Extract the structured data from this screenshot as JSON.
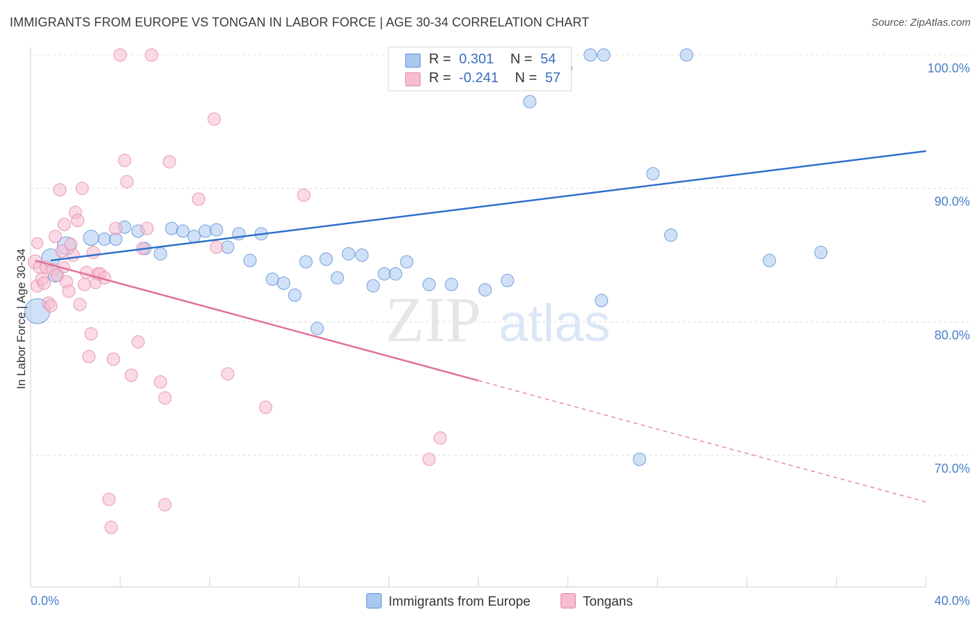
{
  "title": "IMMIGRANTS FROM EUROPE VS TONGAN IN LABOR FORCE | AGE 30-34 CORRELATION CHART",
  "source": "Source: ZipAtlas.com",
  "colors": {
    "blue_fill": "#a9c8f0",
    "blue_stroke": "#5b8fd6",
    "blue_line": "#2f6fc9",
    "pink_fill": "#f6bcd0",
    "pink_stroke": "#e68aa8",
    "pink_line": "#e0709a",
    "tick_label": "#4a7fc8"
  },
  "legend_top": {
    "series1": {
      "r_label": "R =",
      "r_value": "0.301",
      "n_label": "N =",
      "n_value": "54"
    },
    "series2": {
      "r_label": "R =",
      "r_value": "-0.241",
      "n_label": "N =",
      "n_value": "57"
    }
  },
  "chart_data": {
    "type": "scatter",
    "title": "IMMIGRANTS FROM EUROPE VS TONGAN IN LABOR FORCE | AGE 30-34 CORRELATION CHART",
    "ylabel": "In Labor Force | Age 30-34",
    "xlabel": "",
    "xlim": [
      0,
      40
    ],
    "ylim": [
      61.5,
      101.5
    ],
    "x_tick_labels": [
      "0.0%",
      "40.0%"
    ],
    "y_ticks": [
      {
        "value": 100,
        "label": "100.0%"
      },
      {
        "value": 90,
        "label": "90.0%"
      },
      {
        "value": 80,
        "label": "80.0%"
      },
      {
        "value": 70,
        "label": "70.0%"
      }
    ],
    "grid": true,
    "legend_position": "bottom",
    "watermark": "ZIPatlas",
    "series": [
      {
        "name": "Immigrants from Europe",
        "color": "#a9c8f0",
        "trend": {
          "x0": 0.9,
          "y0": 84.6,
          "x1": 40.0,
          "y1": 92.8
        },
        "points": [
          [
            0.3,
            80.8,
            18
          ],
          [
            0.9,
            84.8,
            13
          ],
          [
            1.1,
            83.5,
            10
          ],
          [
            1.6,
            85.7,
            13
          ],
          [
            2.7,
            86.3,
            11
          ],
          [
            3.3,
            86.2,
            9
          ],
          [
            3.8,
            86.2,
            9
          ],
          [
            4.2,
            87.1,
            9
          ],
          [
            4.8,
            86.8,
            9
          ],
          [
            5.1,
            85.5,
            9
          ],
          [
            5.8,
            85.1,
            9
          ],
          [
            6.3,
            87.0,
            9
          ],
          [
            6.8,
            86.8,
            9
          ],
          [
            7.3,
            86.4,
            9
          ],
          [
            7.8,
            86.8,
            9
          ],
          [
            8.3,
            86.9,
            9
          ],
          [
            8.8,
            85.6,
            9
          ],
          [
            9.3,
            86.6,
            9
          ],
          [
            9.8,
            84.6,
            9
          ],
          [
            10.3,
            86.6,
            9
          ],
          [
            10.8,
            83.2,
            9
          ],
          [
            11.3,
            82.9,
            9
          ],
          [
            11.8,
            82.0,
            9
          ],
          [
            12.3,
            84.5,
            9
          ],
          [
            12.8,
            79.5,
            9
          ],
          [
            13.2,
            84.7,
            9
          ],
          [
            13.7,
            83.3,
            9
          ],
          [
            14.2,
            85.1,
            9
          ],
          [
            14.8,
            85.0,
            9
          ],
          [
            15.3,
            82.7,
            9
          ],
          [
            15.8,
            83.6,
            9
          ],
          [
            16.3,
            83.6,
            9
          ],
          [
            16.8,
            84.5,
            9
          ],
          [
            17.8,
            82.8,
            9
          ],
          [
            18.8,
            82.8,
            9
          ],
          [
            20.3,
            82.4,
            9
          ],
          [
            21.3,
            83.1,
            9
          ],
          [
            22.3,
            96.5,
            9
          ],
          [
            25.5,
            81.6,
            9
          ],
          [
            27.2,
            69.7,
            9
          ],
          [
            27.8,
            91.1,
            9
          ],
          [
            28.6,
            86.5,
            9
          ],
          [
            33.0,
            84.6,
            9
          ],
          [
            35.3,
            85.2,
            9
          ],
          [
            18.5,
            100.0,
            9
          ],
          [
            19.5,
            100.0,
            9
          ],
          [
            20.0,
            100.0,
            9
          ],
          [
            22.0,
            100.0,
            9
          ],
          [
            22.5,
            100.0,
            9
          ],
          [
            25.0,
            100.0,
            9
          ],
          [
            25.6,
            100.0,
            9
          ],
          [
            29.3,
            100.0,
            9
          ],
          [
            17.5,
            99.0,
            7
          ],
          [
            24.0,
            99.0,
            6
          ]
        ]
      },
      {
        "name": "Tongans",
        "color": "#f6bcd0",
        "trend": {
          "x0": 0.2,
          "y0": 84.6,
          "x1": 20.0,
          "y1": 75.6,
          "dash_x1": 40.0,
          "dash_y1": 66.5
        },
        "points": [
          [
            0.2,
            84.5,
            10
          ],
          [
            0.3,
            82.7,
            9
          ],
          [
            0.4,
            84.1,
            9
          ],
          [
            0.5,
            83.2,
            9
          ],
          [
            0.6,
            82.9,
            9
          ],
          [
            0.7,
            84.1,
            9
          ],
          [
            0.8,
            81.4,
            9
          ],
          [
            0.9,
            81.2,
            9
          ],
          [
            1.0,
            83.9,
            9
          ],
          [
            1.1,
            86.4,
            9
          ],
          [
            1.2,
            83.5,
            9
          ],
          [
            1.3,
            89.9,
            9
          ],
          [
            1.4,
            85.3,
            9
          ],
          [
            1.5,
            87.3,
            9
          ],
          [
            1.6,
            83.0,
            9
          ],
          [
            1.7,
            82.3,
            9
          ],
          [
            1.8,
            85.8,
            9
          ],
          [
            1.9,
            85.0,
            9
          ],
          [
            2.0,
            88.2,
            9
          ],
          [
            2.1,
            87.6,
            9
          ],
          [
            2.2,
            81.3,
            9
          ],
          [
            2.3,
            90.0,
            9
          ],
          [
            2.4,
            82.8,
            9
          ],
          [
            2.5,
            83.7,
            9
          ],
          [
            2.6,
            77.4,
            9
          ],
          [
            2.7,
            79.1,
            9
          ],
          [
            2.8,
            85.2,
            9
          ],
          [
            3.0,
            83.6,
            9
          ],
          [
            3.1,
            83.6,
            9
          ],
          [
            3.3,
            83.3,
            9
          ],
          [
            3.5,
            66.7,
            9
          ],
          [
            3.6,
            64.6,
            9
          ],
          [
            3.7,
            77.2,
            9
          ],
          [
            3.8,
            87.0,
            9
          ],
          [
            4.0,
            100.0,
            9
          ],
          [
            4.2,
            92.1,
            9
          ],
          [
            4.3,
            90.5,
            9
          ],
          [
            4.5,
            76.0,
            9
          ],
          [
            4.8,
            78.5,
            9
          ],
          [
            5.0,
            85.5,
            9
          ],
          [
            5.2,
            87.0,
            9
          ],
          [
            5.4,
            100.0,
            9
          ],
          [
            5.8,
            75.5,
            9
          ],
          [
            6.0,
            74.3,
            9
          ],
          [
            6.0,
            66.3,
            9
          ],
          [
            6.2,
            92.0,
            9
          ],
          [
            7.5,
            89.2,
            9
          ],
          [
            8.2,
            95.2,
            9
          ],
          [
            8.3,
            85.6,
            9
          ],
          [
            8.8,
            76.1,
            9
          ],
          [
            10.5,
            73.6,
            9
          ],
          [
            12.2,
            89.5,
            9
          ],
          [
            17.8,
            69.7,
            9
          ],
          [
            18.3,
            71.3,
            9
          ],
          [
            0.3,
            85.9,
            8
          ],
          [
            1.5,
            84.1,
            8
          ],
          [
            2.9,
            82.9,
            8
          ]
        ]
      }
    ]
  },
  "bottom_legend": {
    "series1": "Immigrants from Europe",
    "series2": "Tongans"
  }
}
